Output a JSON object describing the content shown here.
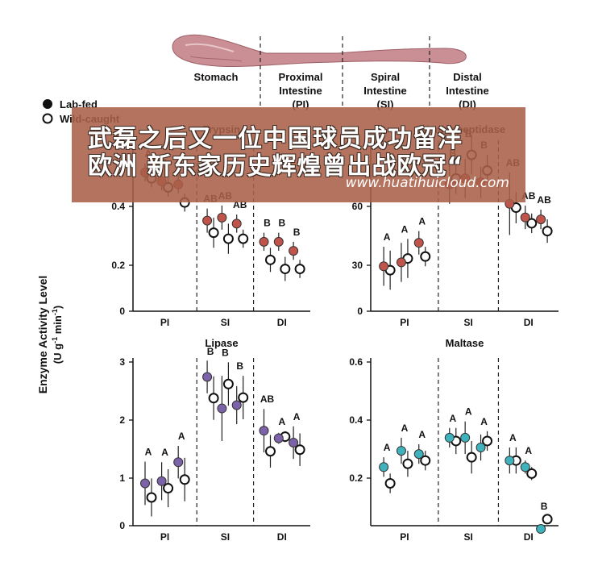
{
  "header": {
    "regions": [
      "Stomach",
      "Proximal\nIntestine\n(PI)",
      "Spiral\nIntestine\n(SI)",
      "Distal\nIntestine\n(DI)"
    ]
  },
  "legend": {
    "lab_fed": "Lab-fed",
    "wild_caught": "Wild-caught"
  },
  "y_axis_label": "Enzyme Activity Level",
  "y_axis_units": "(U g-1 min-1)",
  "colors": {
    "trypsin": "#c0544a",
    "aminopeptidase": "#c0544a",
    "lipase": "#7c62a8",
    "maltase": "#3fb3bd",
    "wild": "#ffffff",
    "organ": "#c98f95"
  },
  "banner": {
    "line1": "武磊之后又一位中国球员成功留洋",
    "line2": "欧洲 新东家历史辉煌曾出战欧冠“",
    "url": "www.huatihuicloud.com"
  },
  "chart_data": [
    {
      "type": "scatter",
      "title": "Trypsin",
      "groups": [
        "PI",
        "SI",
        "DI"
      ],
      "yticks": [
        "0",
        "0.2",
        "0.4"
      ],
      "ylim": [
        0,
        0.55
      ],
      "letters": [
        "A",
        "A",
        "A",
        "AB",
        "AB",
        "AB",
        "B",
        "B",
        "B"
      ],
      "series": [
        {
          "name": "Lab-fed",
          "values": [
            0.46,
            0.43,
            0.42,
            0.3,
            0.31,
            0.29,
            0.23,
            0.23,
            0.2
          ],
          "err": [
            0.03,
            0.03,
            0.03,
            0.04,
            0.04,
            0.03,
            0.03,
            0.03,
            0.03
          ]
        },
        {
          "name": "Wild-caught",
          "values": [
            0.44,
            0.41,
            0.36,
            0.26,
            0.24,
            0.24,
            0.17,
            0.14,
            0.14
          ],
          "err": [
            0.03,
            0.03,
            0.03,
            0.05,
            0.05,
            0.03,
            0.04,
            0.04,
            0.03
          ]
        }
      ]
    },
    {
      "type": "scatter",
      "title": "Aminopeptidase",
      "groups": [
        "PI",
        "SI",
        "DI"
      ],
      "yticks": [
        "0",
        "30",
        "60"
      ],
      "ylim": [
        0,
        85
      ],
      "letters": [
        "A",
        "A",
        "A",
        "B",
        "B",
        "B",
        "AB",
        "AB",
        "AB"
      ],
      "series": [
        {
          "name": "Lab-fed",
          "values": [
            23,
            25,
            35,
            65,
            68,
            66,
            55,
            48,
            47
          ],
          "err": [
            10,
            10,
            6,
            10,
            10,
            8,
            16,
            6,
            5
          ]
        },
        {
          "name": "Wild-caught",
          "values": [
            21,
            27,
            28,
            68,
            80,
            72,
            53,
            45,
            41
          ],
          "err": [
            10,
            10,
            5,
            8,
            10,
            8,
            8,
            5,
            6
          ]
        }
      ]
    },
    {
      "type": "scatter",
      "title": "Lipase",
      "groups": [
        "PI",
        "SI",
        "DI"
      ],
      "yticks": [
        "0",
        "1",
        "2",
        "3"
      ],
      "ylim": [
        0,
        3
      ],
      "letters": [
        "A",
        "A",
        "A",
        "B",
        "B",
        "B",
        "AB",
        "A",
        "A"
      ],
      "series": [
        {
          "name": "Lab-fed",
          "values": [
            0.78,
            0.82,
            1.17,
            2.74,
            2.16,
            2.22,
            1.75,
            1.61,
            1.53
          ],
          "err": [
            0.4,
            0.35,
            0.3,
            0.3,
            0.6,
            0.35,
            0.4,
            0.1,
            0.3
          ]
        },
        {
          "name": "Wild-caught",
          "values": [
            0.52,
            0.69,
            0.85,
            2.35,
            2.61,
            2.36,
            1.37,
            1.64,
            1.4
          ],
          "err": [
            0.35,
            0.35,
            0.4,
            0.4,
            0.4,
            0.4,
            0.3,
            0.1,
            0.3
          ]
        }
      ]
    },
    {
      "type": "scatter",
      "title": "Maltase",
      "groups": [
        "PI",
        "SI",
        "DI"
      ],
      "yticks": [
        "0.2",
        "0.4",
        "0.6"
      ],
      "ylim": [
        0.12,
        0.62
      ],
      "letters": [
        "A",
        "A",
        "A",
        "A",
        "A",
        "A",
        "A",
        "A",
        "B"
      ],
      "series": [
        {
          "name": "Lab-fed",
          "values": [
            0.3,
            0.35,
            0.34,
            0.39,
            0.39,
            0.36,
            0.32,
            0.3,
            0.11
          ],
          "err": [
            0.03,
            0.04,
            0.03,
            0.03,
            0.05,
            0.04,
            0.04,
            0.02,
            0.01
          ]
        },
        {
          "name": "Wild-caught",
          "values": [
            0.25,
            0.31,
            0.32,
            0.38,
            0.33,
            0.38,
            0.32,
            0.28,
            0.14
          ],
          "err": [
            0.03,
            0.04,
            0.03,
            0.04,
            0.05,
            0.03,
            0.04,
            0.02,
            0.01
          ]
        }
      ]
    }
  ]
}
